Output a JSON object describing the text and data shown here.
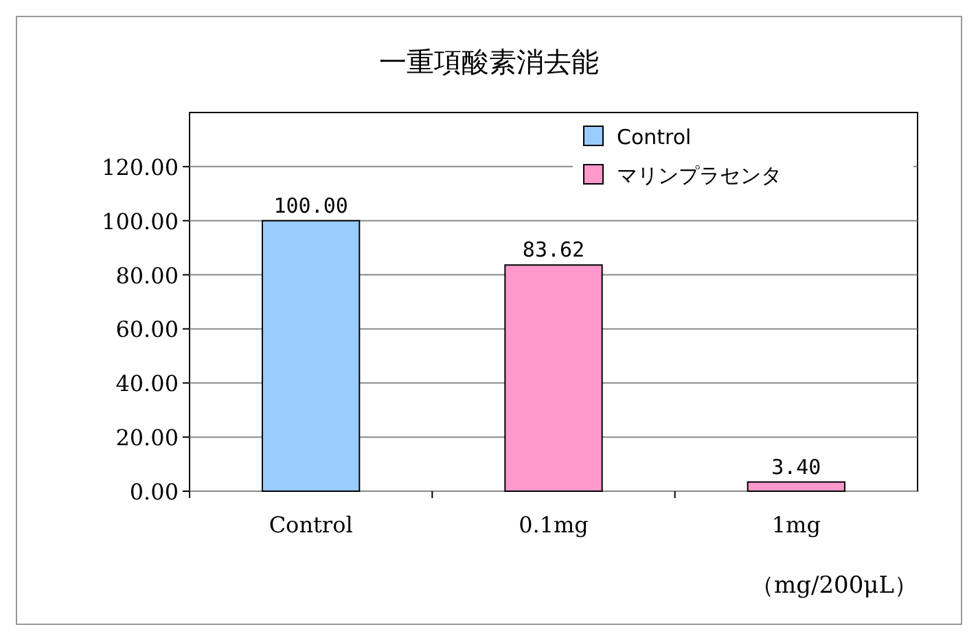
{
  "chart_data": {
    "type": "bar",
    "title": "一重項酸素消去能",
    "xlabel": "（mg/200μL）",
    "categories": [
      "Control",
      "0.1mg",
      "1mg"
    ],
    "series": [
      {
        "name": "Control",
        "color": "#99ccff",
        "values": [
          100,
          null,
          null
        ],
        "value_labels": [
          "100.00",
          null,
          null
        ]
      },
      {
        "name": "マリンプラセンタ",
        "color": "#ff99cc",
        "values": [
          null,
          83.62,
          3.4
        ],
        "value_labels": [
          null,
          "83.62",
          "3.40"
        ]
      }
    ],
    "ylim": [
      0,
      140
    ],
    "yticks": [
      {
        "value": 0,
        "label": "0.00"
      },
      {
        "value": 20,
        "label": "20.00"
      },
      {
        "value": 40,
        "label": "40.00"
      },
      {
        "value": 60,
        "label": "60.00"
      },
      {
        "value": 80,
        "label": "80.00"
      },
      {
        "value": 100,
        "label": "100.00"
      },
      {
        "value": 120,
        "label": "120.00"
      }
    ],
    "grid": "y",
    "legend": "top right"
  }
}
